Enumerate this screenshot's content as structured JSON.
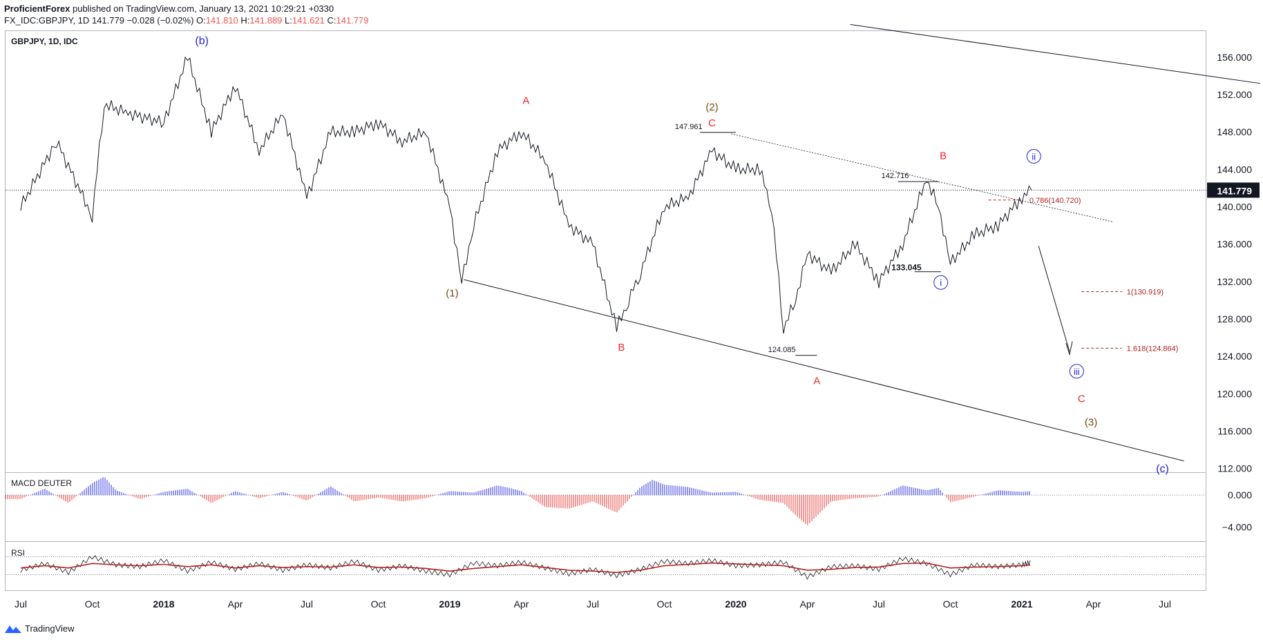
{
  "header": {
    "publisher": "ProficientForex",
    "published_text": "published on TradingView.com, January 13, 2021 10:29:21 +0330",
    "symbol_line": "FX_IDC:GBPJPY, 1D",
    "last": "141.779",
    "change": "−0.028 (−0.02%)",
    "o_label": "O:",
    "o_val": "141.810",
    "h_label": "H:",
    "h_val": "141.889",
    "l_label": "L:",
    "l_val": "141.621",
    "c_label": "C:",
    "c_val": "141.779"
  },
  "pane_title": "GBPJPY, 1D, IDC",
  "indicators": {
    "macd": "MACD DEUTER",
    "rsi": "RSI"
  },
  "footer": {
    "brand": "TradingView"
  },
  "colors": {
    "red": "#ef2626",
    "blue": "#1e22d8",
    "brown": "#7a4a10",
    "last_bg": "#131722",
    "fib": "#b22222"
  },
  "chart_data": {
    "type": "line",
    "title": "GBPJPY, 1D, IDC",
    "ylim": [
      111.6,
      158.8
    ],
    "y_ticks": [
      "156.000",
      "152.000",
      "148.000",
      "144.000",
      "140.000",
      "136.000",
      "132.000",
      "128.000",
      "124.000",
      "120.000",
      "116.000",
      "112.000"
    ],
    "y_tick_values": [
      156,
      152,
      148,
      144,
      140,
      136,
      132,
      128,
      124,
      120,
      116,
      112
    ],
    "x_ticks": [
      "Jul",
      "Oct",
      "2018",
      "Apr",
      "Jul",
      "Oct",
      "2019",
      "Apr",
      "Jul",
      "Oct",
      "2020",
      "Apr",
      "Jul",
      "Oct",
      "2021",
      "Apr",
      "Jul"
    ],
    "x_tick_months": [
      0,
      3,
      6,
      9,
      12,
      15,
      18,
      21,
      24,
      27,
      30,
      33,
      36,
      39,
      42,
      45,
      48
    ],
    "x_start": "2017-06",
    "series": [
      {
        "name": "GBPJPY close",
        "months": [
          0,
          1.5,
          3,
          3.5,
          4.5,
          6,
          7,
          8,
          9,
          10,
          11,
          12,
          13,
          14,
          15,
          16,
          17,
          18,
          18.5,
          19,
          20,
          21,
          22,
          23,
          24,
          25,
          25.5,
          26,
          27,
          28,
          29,
          30,
          31,
          31.5,
          32,
          32.5,
          33,
          34,
          35,
          36,
          37,
          38,
          38.5,
          39,
          40,
          41,
          42,
          42.4
        ],
        "values": [
          140,
          147,
          139,
          151,
          150,
          149,
          156,
          148,
          153,
          146,
          150,
          141,
          148,
          148,
          149,
          147,
          148,
          140,
          132,
          138,
          146,
          148,
          145,
          138,
          136,
          127,
          130,
          133,
          140,
          141,
          146,
          144,
          144,
          140,
          127,
          130,
          135,
          133,
          136,
          132,
          136,
          143,
          140,
          134,
          137,
          138,
          141,
          141.8
        ]
      }
    ],
    "last_price": "141.779",
    "price_labels": {
      "p1": "147.961",
      "p2": "142.716",
      "p3": "133.045",
      "p4": "124.085"
    },
    "annotations": {
      "b_wave": "(b)",
      "c_wave": "(c)",
      "w1": "(1)",
      "w2": "(2)",
      "w3": "(3)",
      "A1": "A",
      "B1": "B",
      "C1": "C",
      "A2": "A",
      "B2": "B",
      "C2": "C",
      "i": "i",
      "ii": "ii",
      "iii": "iii"
    },
    "fib_levels": [
      {
        "label": "0.786(140.720)",
        "value": 140.72
      },
      {
        "label": "1(130.919)",
        "value": 130.919
      },
      {
        "label": "1.618(124.864)",
        "value": 124.864
      }
    ],
    "macd": {
      "y_ticks": [
        "0.000",
        "−4.000"
      ],
      "y_tick_values": [
        0,
        -4
      ],
      "ylim": [
        -5.6,
        2.6
      ],
      "months": [
        0,
        1,
        2,
        3,
        3.5,
        4,
        5,
        6,
        7,
        8,
        9,
        10,
        11,
        12,
        13,
        14,
        15,
        16,
        17,
        18,
        19,
        20,
        20.5,
        21,
        22,
        23,
        24,
        25,
        26,
        26.5,
        27,
        28,
        29,
        30,
        31,
        32,
        32.5,
        33,
        34,
        35,
        36,
        37,
        38,
        38.5,
        39,
        40,
        41,
        42,
        42.4
      ],
      "values": [
        -0.5,
        0.8,
        -1,
        1.5,
        2.3,
        0.6,
        -0.5,
        0.4,
        0.8,
        -1,
        0.5,
        -0.4,
        0.4,
        -0.7,
        1.1,
        -0.8,
        -0.3,
        -0.8,
        -0.4,
        0.5,
        0.3,
        1.2,
        0.9,
        0.5,
        -1.5,
        -1.7,
        -0.8,
        -2.2,
        1,
        1.9,
        1.3,
        1,
        0.3,
        0.4,
        -0.6,
        -1,
        -2.5,
        -3.8,
        -0.8,
        -0.4,
        -0.2,
        1.2,
        0.6,
        0.9,
        -0.9,
        -0.2,
        0.6,
        0.4,
        0.5
      ]
    },
    "rsi": {
      "levels": [
        70,
        30
      ],
      "ylim": [
        0,
        100
      ],
      "months": [
        0,
        1,
        2,
        3,
        4,
        5,
        6,
        7,
        8,
        9,
        10,
        11,
        12,
        13,
        14,
        15,
        16,
        17,
        18,
        19,
        20,
        21,
        22,
        23,
        24,
        25,
        26,
        27,
        28,
        29,
        30,
        31,
        32,
        33,
        34,
        35,
        36,
        37,
        38,
        39,
        40,
        41,
        42,
        42.4
      ],
      "rsi": [
        40,
        55,
        35,
        70,
        52,
        48,
        62,
        38,
        58,
        42,
        55,
        40,
        52,
        45,
        60,
        40,
        50,
        38,
        30,
        56,
        50,
        58,
        45,
        32,
        42,
        28,
        42,
        60,
        55,
        62,
        50,
        52,
        58,
        25,
        48,
        50,
        42,
        66,
        55,
        30,
        52,
        48,
        52,
        58
      ],
      "ma": [
        45,
        50,
        45,
        55,
        52,
        50,
        53,
        48,
        52,
        45,
        50,
        46,
        48,
        47,
        52,
        46,
        47,
        44,
        38,
        44,
        48,
        52,
        46,
        40,
        38,
        35,
        40,
        50,
        53,
        56,
        54,
        52,
        50,
        40,
        42,
        46,
        47,
        55,
        56,
        45,
        47,
        48,
        50,
        52
      ]
    }
  }
}
